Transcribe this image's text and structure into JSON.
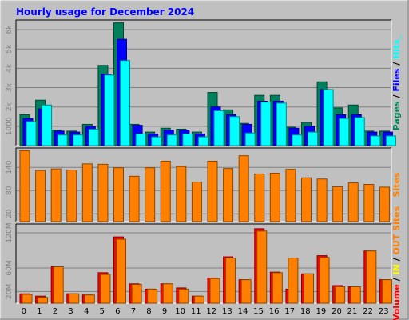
{
  "title": "Hourly usage for December 2024",
  "colors": {
    "background": "#c0c0c0",
    "title": "#0000ff",
    "pages": "#00805c",
    "files": "#0000ff",
    "hits": "#00ffff",
    "sites": "#ff8000",
    "volume": "#ff0000",
    "in": "#ffff00",
    "out": "#ff8000",
    "slash": "#000000"
  },
  "chart_data": {
    "type": "bar",
    "title": "Hourly usage for December 2024",
    "categories": [
      "0",
      "1",
      "2",
      "3",
      "4",
      "5",
      "6",
      "7",
      "8",
      "9",
      "10",
      "11",
      "12",
      "13",
      "14",
      "15",
      "16",
      "17",
      "18",
      "19",
      "20",
      "21",
      "22",
      "23"
    ],
    "panels": [
      {
        "name": "hits-panel",
        "ylim": [
          0,
          6500
        ],
        "yticks": [
          "1000",
          "2k",
          "3k",
          "4k",
          "5k",
          "6k"
        ],
        "ytick_values": [
          1000,
          2000,
          3000,
          4000,
          5000,
          6000
        ],
        "side_label": [
          {
            "text": "Pages",
            "color_key": "pages"
          },
          {
            "text": " / ",
            "color_key": "slash"
          },
          {
            "text": "Files",
            "color_key": "files"
          },
          {
            "text": " / ",
            "color_key": "slash"
          },
          {
            "text": "Hits_",
            "color_key": "hits"
          }
        ],
        "series": [
          {
            "color_key": "pages",
            "values": [
              1600,
              2350,
              800,
              750,
              1100,
              4150,
              6350,
              1100,
              700,
              900,
              850,
              700,
              2750,
              1850,
              1150,
              2600,
              2600,
              950,
              1200,
              3300,
              1950,
              2100,
              750,
              750
            ]
          },
          {
            "color_key": "files",
            "values": [
              1400,
              1900,
              750,
              700,
              1000,
              3700,
              5500,
              1050,
              600,
              800,
              800,
              600,
              2000,
              1600,
              1100,
              2300,
              2300,
              900,
              1000,
              2900,
              1600,
              1600,
              700,
              700
            ]
          },
          {
            "color_key": "hits",
            "values": [
              1250,
              2100,
              550,
              550,
              850,
              3650,
              4400,
              600,
              450,
              550,
              600,
              450,
              1800,
              1500,
              650,
              2250,
              2200,
              550,
              700,
              2900,
              1400,
              1450,
              500,
              500
            ]
          }
        ]
      },
      {
        "name": "sites-panel",
        "ylim": [
          0,
          190
        ],
        "yticks": [
          "20",
          "80",
          "140"
        ],
        "ytick_values": [
          20,
          80,
          140
        ],
        "side_label": [
          {
            "text": "Sites",
            "color_key": "sites"
          }
        ],
        "series": [
          {
            "color_key": "sites",
            "values": [
              183,
              132,
              136,
              133,
              149,
              148,
              139,
              117,
              139,
              156,
              142,
              102,
              156,
              137,
              170,
              123,
              125,
              135,
              113,
              110,
              90,
              100,
              96,
              89
            ]
          }
        ]
      },
      {
        "name": "volume-panel",
        "ylim": [
          0,
          135
        ],
        "yticks": [
          "20M",
          "60M",
          "120M"
        ],
        "ytick_values": [
          20,
          60,
          120
        ],
        "side_label": [
          {
            "text": "Volume",
            "color_key": "volume"
          },
          {
            "text": " / ",
            "color_key": "slash"
          },
          {
            "text": "IN",
            "color_key": "in"
          },
          {
            "text": " / ",
            "color_key": "slash"
          },
          {
            "text": "OUT",
            "color_key": "out"
          },
          {
            "text": "  ",
            "color_key": "slash"
          },
          {
            "text": "Sites",
            "color_key": "sites"
          }
        ],
        "series": [
          {
            "color_key": "volume",
            "values": [
              16,
              12,
              62,
              16,
              14,
              52,
              113,
              33,
              24,
              33,
              26,
              12,
              43,
              79,
              40,
              127,
              53,
              24,
              50,
              81,
              30,
              28,
              89,
              40
            ]
          },
          {
            "color_key": "out",
            "values": [
              15,
              10,
              62,
              16,
              14,
              49,
              109,
              32,
              24,
              33,
              24,
              12,
              42,
              77,
              40,
              123,
              52,
              77,
              50,
              78,
              28,
              28,
              89,
              40
            ]
          }
        ]
      }
    ]
  }
}
